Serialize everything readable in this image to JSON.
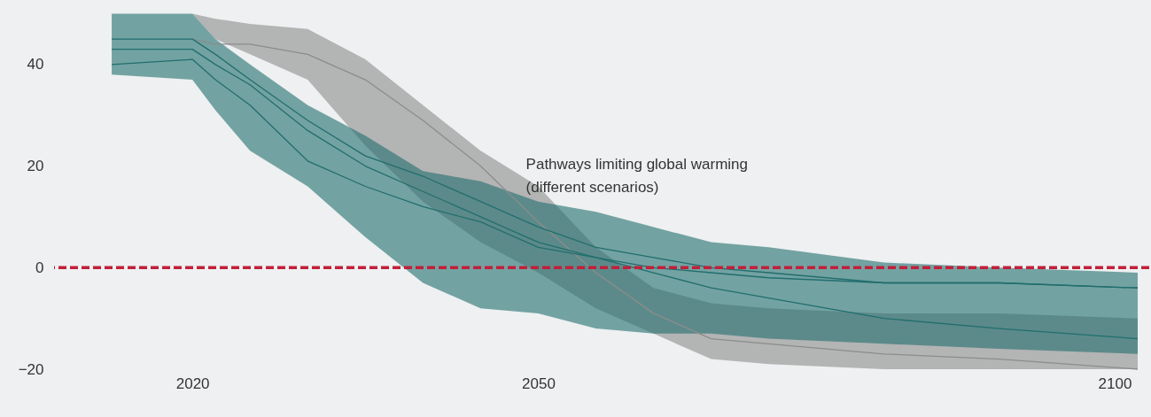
{
  "chart_data": {
    "type": "line",
    "x": [
      2013,
      2020,
      2022,
      2025,
      2030,
      2035,
      2040,
      2045,
      2050,
      2055,
      2060,
      2065,
      2070,
      2080,
      2090,
      2102
    ],
    "xlim": [
      2008,
      2103
    ],
    "xticks": [
      2020,
      2050,
      2100
    ],
    "ylim": [
      -20,
      52
    ],
    "yticks": [
      -20,
      0,
      20,
      40
    ],
    "series": [
      {
        "color": "#8c8c8c",
        "x": [
          2020,
          2022,
          2025,
          2030,
          2035,
          2040,
          2045,
          2050,
          2055,
          2060,
          2065,
          2070,
          2080,
          2090,
          2102
        ],
        "values": [
          45,
          44,
          44,
          42,
          37,
          29,
          20,
          9,
          -1,
          -9,
          -14,
          -15,
          -17,
          -18,
          -20
        ],
        "lower": [
          50,
          45,
          42,
          37,
          24,
          13,
          5,
          -1,
          -8,
          -13,
          -18,
          -19,
          -20,
          -20,
          -20
        ],
        "upper": [
          50,
          49,
          48,
          47,
          41,
          32,
          23,
          16,
          4,
          -4,
          -7,
          -8,
          -9,
          -9,
          -10
        ]
      },
      {
        "color": "#226e6e",
        "values": [
          45,
          45,
          42,
          37,
          29,
          22,
          18,
          13,
          8,
          4,
          2,
          0,
          -1,
          -3,
          -3,
          -4
        ],
        "lower": [
          38,
          37,
          31,
          23,
          16,
          6,
          -3,
          -8,
          -9,
          -12,
          -13,
          -13,
          -14,
          -15,
          -16,
          -17
        ],
        "upper": [
          50,
          50,
          45,
          40,
          32,
          26,
          19,
          17,
          13,
          11,
          8,
          5,
          4,
          1,
          0,
          -1
        ]
      },
      {
        "color": "#226e6e",
        "values": [
          43,
          43,
          40,
          36,
          27,
          20,
          15,
          10,
          5,
          2,
          -1,
          -4,
          -6,
          -10,
          -12,
          -14
        ]
      },
      {
        "color": "#226e6e",
        "values": [
          40,
          41,
          37,
          32,
          21,
          16,
          12,
          9,
          4,
          2,
          0,
          -1,
          -2,
          -3,
          -3,
          -4
        ]
      }
    ],
    "ref_lines": [
      {
        "axis": "y",
        "value": 0,
        "color": "#c21f3a",
        "line_style": "dashed"
      }
    ],
    "annotations": [
      "Pathways limiting global warming\n    (different scenarios)"
    ],
    "grid": false
  }
}
